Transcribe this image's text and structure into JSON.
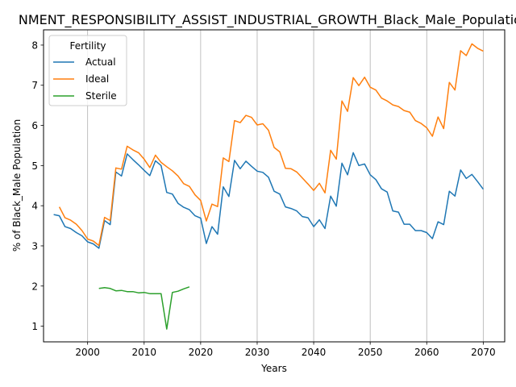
{
  "chart_data": {
    "type": "line",
    "title": "NMENT_RESPONSIBILITY_ASSIST_INDUSTRIAL_GROWTH_Black_Male_Population",
    "xlabel": "Years",
    "ylabel": "% of Black_Male Population",
    "xlim": [
      1992.2,
      2073.8
    ],
    "ylim": [
      0.61,
      8.38
    ],
    "x_ticks": [
      2000,
      2010,
      2020,
      2030,
      2040,
      2050,
      2060,
      2070
    ],
    "y_ticks": [
      1,
      2,
      3,
      4,
      5,
      6,
      7,
      8
    ],
    "grid": "x-only",
    "legend": {
      "title": "Fertility",
      "placement": "top-left"
    },
    "series": [
      {
        "name": "Actual",
        "color": "#1f77b4",
        "points": [
          [
            1994,
            3.78
          ],
          [
            1995,
            3.75
          ],
          [
            1996,
            3.48
          ],
          [
            1997,
            3.43
          ],
          [
            1998,
            3.33
          ],
          [
            1999,
            3.25
          ],
          [
            2000,
            3.1
          ],
          [
            2001,
            3.05
          ],
          [
            2002,
            2.94
          ],
          [
            2003,
            3.63
          ],
          [
            2004,
            3.53
          ],
          [
            2005,
            4.84
          ],
          [
            2006,
            4.74
          ],
          [
            2007,
            5.29
          ],
          [
            2008,
            5.15
          ],
          [
            2009,
            5.02
          ],
          [
            2010,
            4.88
          ],
          [
            2011,
            4.75
          ],
          [
            2012,
            5.12
          ],
          [
            2013,
            5.0
          ],
          [
            2014,
            4.33
          ],
          [
            2015,
            4.29
          ],
          [
            2016,
            4.06
          ],
          [
            2017,
            3.96
          ],
          [
            2018,
            3.9
          ],
          [
            2019,
            3.75
          ],
          [
            2020,
            3.69
          ],
          [
            2021,
            3.06
          ],
          [
            2022,
            3.48
          ],
          [
            2023,
            3.29
          ],
          [
            2024,
            4.47
          ],
          [
            2025,
            4.23
          ],
          [
            2026,
            5.13
          ],
          [
            2027,
            4.92
          ],
          [
            2028,
            5.11
          ],
          [
            2029,
            4.98
          ],
          [
            2030,
            4.86
          ],
          [
            2031,
            4.83
          ],
          [
            2032,
            4.71
          ],
          [
            2033,
            4.36
          ],
          [
            2034,
            4.29
          ],
          [
            2035,
            3.97
          ],
          [
            2036,
            3.93
          ],
          [
            2037,
            3.87
          ],
          [
            2038,
            3.73
          ],
          [
            2039,
            3.7
          ],
          [
            2040,
            3.48
          ],
          [
            2041,
            3.65
          ],
          [
            2042,
            3.43
          ],
          [
            2043,
            4.24
          ],
          [
            2044,
            3.99
          ],
          [
            2045,
            5.06
          ],
          [
            2046,
            4.77
          ],
          [
            2047,
            5.32
          ],
          [
            2048,
            5.0
          ],
          [
            2049,
            5.04
          ],
          [
            2050,
            4.77
          ],
          [
            2051,
            4.65
          ],
          [
            2052,
            4.42
          ],
          [
            2053,
            4.34
          ],
          [
            2054,
            3.87
          ],
          [
            2055,
            3.84
          ],
          [
            2056,
            3.54
          ],
          [
            2057,
            3.54
          ],
          [
            2058,
            3.38
          ],
          [
            2059,
            3.38
          ],
          [
            2060,
            3.33
          ],
          [
            2061,
            3.18
          ],
          [
            2062,
            3.6
          ],
          [
            2063,
            3.53
          ],
          [
            2064,
            4.36
          ],
          [
            2065,
            4.24
          ],
          [
            2066,
            4.89
          ],
          [
            2067,
            4.68
          ],
          [
            2068,
            4.78
          ],
          [
            2069,
            4.6
          ],
          [
            2070,
            4.41
          ]
        ]
      },
      {
        "name": "Ideal",
        "color": "#ff7f0e",
        "points": [
          [
            1995,
            3.97
          ],
          [
            1996,
            3.7
          ],
          [
            1997,
            3.64
          ],
          [
            1998,
            3.54
          ],
          [
            1999,
            3.38
          ],
          [
            2000,
            3.17
          ],
          [
            2001,
            3.12
          ],
          [
            2002,
            3.01
          ],
          [
            2003,
            3.71
          ],
          [
            2004,
            3.63
          ],
          [
            2005,
            4.94
          ],
          [
            2006,
            4.91
          ],
          [
            2007,
            5.48
          ],
          [
            2008,
            5.39
          ],
          [
            2009,
            5.32
          ],
          [
            2010,
            5.16
          ],
          [
            2011,
            4.95
          ],
          [
            2012,
            5.26
          ],
          [
            2013,
            5.08
          ],
          [
            2014,
            4.97
          ],
          [
            2015,
            4.87
          ],
          [
            2016,
            4.74
          ],
          [
            2017,
            4.55
          ],
          [
            2018,
            4.48
          ],
          [
            2019,
            4.27
          ],
          [
            2020,
            4.13
          ],
          [
            2021,
            3.62
          ],
          [
            2022,
            4.04
          ],
          [
            2023,
            3.98
          ],
          [
            2024,
            5.19
          ],
          [
            2025,
            5.1
          ],
          [
            2026,
            6.12
          ],
          [
            2027,
            6.07
          ],
          [
            2028,
            6.25
          ],
          [
            2029,
            6.2
          ],
          [
            2030,
            6.01
          ],
          [
            2031,
            6.04
          ],
          [
            2032,
            5.88
          ],
          [
            2033,
            5.45
          ],
          [
            2034,
            5.34
          ],
          [
            2035,
            4.93
          ],
          [
            2036,
            4.92
          ],
          [
            2037,
            4.84
          ],
          [
            2038,
            4.69
          ],
          [
            2039,
            4.54
          ],
          [
            2040,
            4.38
          ],
          [
            2041,
            4.56
          ],
          [
            2042,
            4.32
          ],
          [
            2043,
            5.38
          ],
          [
            2044,
            5.16
          ],
          [
            2045,
            6.61
          ],
          [
            2046,
            6.35
          ],
          [
            2047,
            7.19
          ],
          [
            2048,
            6.99
          ],
          [
            2049,
            7.2
          ],
          [
            2050,
            6.95
          ],
          [
            2051,
            6.88
          ],
          [
            2052,
            6.68
          ],
          [
            2053,
            6.61
          ],
          [
            2054,
            6.51
          ],
          [
            2055,
            6.47
          ],
          [
            2056,
            6.37
          ],
          [
            2057,
            6.33
          ],
          [
            2058,
            6.12
          ],
          [
            2059,
            6.05
          ],
          [
            2060,
            5.94
          ],
          [
            2061,
            5.73
          ],
          [
            2062,
            6.21
          ],
          [
            2063,
            5.92
          ],
          [
            2064,
            7.07
          ],
          [
            2065,
            6.88
          ],
          [
            2066,
            7.86
          ],
          [
            2067,
            7.74
          ],
          [
            2068,
            8.03
          ],
          [
            2069,
            7.92
          ],
          [
            2070,
            7.85
          ]
        ]
      },
      {
        "name": "Sterile",
        "color": "#2ca02c",
        "points": [
          [
            2002,
            1.94
          ],
          [
            2003,
            1.96
          ],
          [
            2004,
            1.94
          ],
          [
            2005,
            1.88
          ],
          [
            2006,
            1.89
          ],
          [
            2007,
            1.86
          ],
          [
            2008,
            1.86
          ],
          [
            2009,
            1.83
          ],
          [
            2010,
            1.84
          ],
          [
            2011,
            1.81
          ],
          [
            2012,
            1.81
          ],
          [
            2013,
            1.81
          ],
          [
            2014,
            0.93
          ],
          [
            2015,
            1.84
          ],
          [
            2016,
            1.87
          ],
          [
            2017,
            1.93
          ],
          [
            2018,
            1.98
          ]
        ]
      }
    ]
  }
}
